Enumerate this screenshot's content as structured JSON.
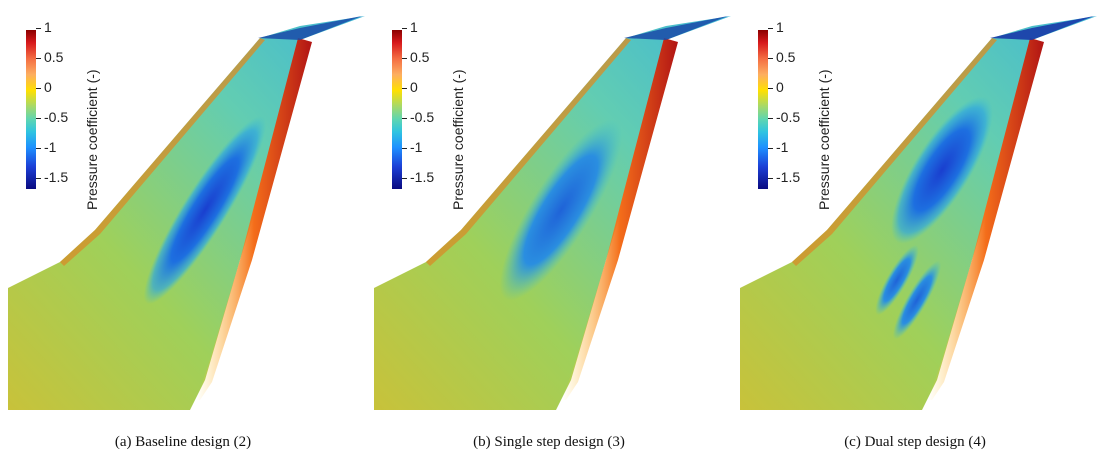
{
  "colorbar": {
    "title": "Pressure coefficient (-)",
    "ticks": [
      "1",
      "0.5",
      "0",
      "-0.5",
      "-1",
      "-1.5"
    ],
    "range": [
      -1.5,
      1
    ],
    "colormap": [
      "#8b0000",
      "#d7191c",
      "#fdae61",
      "#ffe000",
      "#a6d96a",
      "#2fc4e0",
      "#1e90ff",
      "#0a0a80"
    ]
  },
  "panels": [
    {
      "caption": "(a)  Baseline design (2)"
    },
    {
      "caption": "(b)  Single step design (3)"
    },
    {
      "caption": "(c)  Dual step design (4)"
    }
  ]
}
